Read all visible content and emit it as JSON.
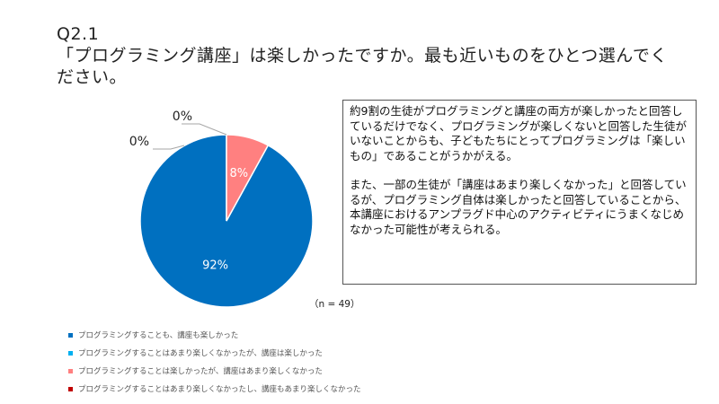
{
  "header": {
    "question_number": "Q2.1",
    "question_text": "「プログラミング講座」は楽しかったですか。最も近いものをひとつ選んでください。"
  },
  "chart_data": {
    "type": "pie",
    "series": [
      {
        "name": "プログラミングすることも、講座も楽しかった",
        "value": 92,
        "label": "92%",
        "color": "#0070C0"
      },
      {
        "name": "プログラミングすることはあまり楽しくなかったが、講座は楽しかった",
        "value": 0,
        "label": "0%",
        "color": "#00B0F0"
      },
      {
        "name": "プログラミングすることは楽しかったが、講座はあまり楽しくなかった",
        "value": 8,
        "label": "8%",
        "color": "#FF8080"
      },
      {
        "name": "プログラミングすることはあまり楽しくなかったし、講座もあまり楽しくなかった",
        "value": 0,
        "label": "0%",
        "color": "#C00000"
      }
    ],
    "legend_position": "bottom-left",
    "sample_size": "（n = 49）"
  },
  "notes": {
    "paragraph_1": "約9割の生徒がプログラミングと講座の両方が楽しかったと回答しているだけでなく、プログラミングが楽しくないと回答した生徒がいないことからも、子どもたちにとってプログラミングは「楽しいもの」であることがうかがえる。",
    "paragraph_2": "また、一部の生徒が「講座はあまり楽しくなかった」と回答しているが、プログラミング自体は楽しかったと回答していることから、本講座におけるアンプラグド中心のアクティビティにうまくなじめなかった可能性が考えられる。"
  }
}
